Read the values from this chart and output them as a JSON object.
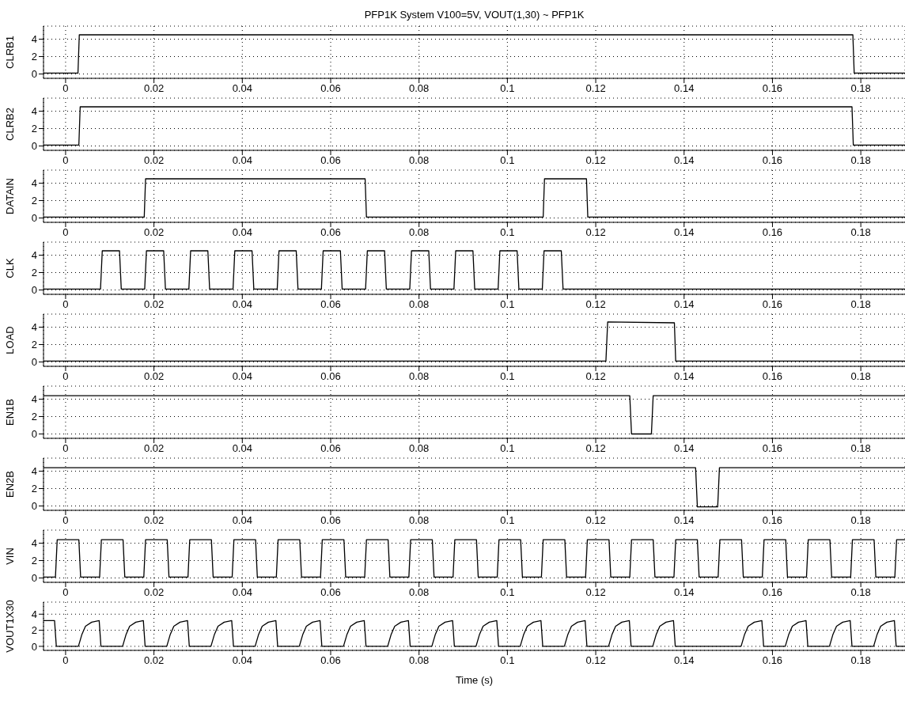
{
  "chart_data": [
    {
      "type": "line",
      "title": "PFP1K System V100=5V, VOUT(1,30) ~ PFP1K",
      "ylabel": "CLRB1",
      "color": "#000000",
      "x": [
        -0.005,
        0.0028,
        0.0031,
        0.1782,
        0.1785,
        0.19
      ],
      "values": [
        0.1,
        0.1,
        4.5,
        4.5,
        0.1,
        0.1
      ],
      "xlim": [
        -0.005,
        0.19
      ],
      "ylim": [
        -0.5,
        5.5
      ],
      "xticks": [
        0,
        0.02,
        0.04,
        0.06,
        0.08,
        0.1,
        0.12,
        0.14,
        0.16,
        0.18
      ],
      "yticks": [
        0,
        2,
        4
      ],
      "grid": true
    },
    {
      "type": "line",
      "ylabel": "CLRB2",
      "color": "#000000",
      "x": [
        -0.005,
        0.003,
        0.0033,
        0.178,
        0.1783,
        0.19
      ],
      "values": [
        0.1,
        0.1,
        4.5,
        4.5,
        0.1,
        0.1
      ],
      "xlim": [
        -0.005,
        0.19
      ],
      "ylim": [
        -0.5,
        5.5
      ],
      "xticks": [
        0,
        0.02,
        0.04,
        0.06,
        0.08,
        0.1,
        0.12,
        0.14,
        0.16,
        0.18
      ],
      "yticks": [
        0,
        2,
        4
      ],
      "grid": true
    },
    {
      "type": "line",
      "ylabel": "DATAIN",
      "color": "#000000",
      "x": [
        -0.005,
        0.0178,
        0.0181,
        0.0678,
        0.0681,
        0.1081,
        0.1084,
        0.1179,
        0.1182,
        0.19
      ],
      "values": [
        0.1,
        0.1,
        4.5,
        4.5,
        0.1,
        0.1,
        4.5,
        4.5,
        0.1,
        0.1
      ],
      "xlim": [
        -0.005,
        0.19
      ],
      "ylim": [
        -0.5,
        5.5
      ],
      "xticks": [
        0,
        0.02,
        0.04,
        0.06,
        0.08,
        0.1,
        0.12,
        0.14,
        0.16,
        0.18
      ],
      "yticks": [
        0,
        2,
        4
      ],
      "grid": true
    },
    {
      "type": "line",
      "ylabel": "CLK",
      "color": "#000000",
      "x": [
        -0.005,
        0.0079,
        0.0083,
        0.0122,
        0.0126,
        0.0179,
        0.0183,
        0.0222,
        0.0226,
        0.0279,
        0.0283,
        0.0322,
        0.0326,
        0.0379,
        0.0383,
        0.0422,
        0.0426,
        0.0479,
        0.0483,
        0.0522,
        0.0526,
        0.0579,
        0.0583,
        0.0622,
        0.0626,
        0.0679,
        0.0683,
        0.0722,
        0.0726,
        0.0779,
        0.0783,
        0.0822,
        0.0826,
        0.0879,
        0.0883,
        0.0922,
        0.0926,
        0.0979,
        0.0983,
        0.1022,
        0.1026,
        0.1079,
        0.1083,
        0.1122,
        0.1126,
        0.19
      ],
      "values": [
        0.1,
        0.1,
        4.5,
        4.5,
        0.1,
        0.1,
        4.5,
        4.5,
        0.1,
        0.1,
        4.5,
        4.5,
        0.1,
        0.1,
        4.5,
        4.5,
        0.1,
        0.1,
        4.5,
        4.5,
        0.1,
        0.1,
        4.5,
        4.5,
        0.1,
        0.1,
        4.5,
        4.5,
        0.1,
        0.1,
        4.5,
        4.5,
        0.1,
        0.1,
        4.5,
        4.5,
        0.1,
        0.1,
        4.5,
        4.5,
        0.1,
        0.1,
        4.5,
        4.5,
        0.1,
        0.1
      ],
      "xlim": [
        -0.005,
        0.19
      ],
      "ylim": [
        -0.5,
        5.5
      ],
      "xticks": [
        0,
        0.02,
        0.04,
        0.06,
        0.08,
        0.1,
        0.12,
        0.14,
        0.16,
        0.18
      ],
      "yticks": [
        0,
        2,
        4
      ],
      "grid": true
    },
    {
      "type": "line",
      "ylabel": "LOAD",
      "color": "#000000",
      "x": [
        -0.005,
        0.1223,
        0.1227,
        0.1378,
        0.1381,
        0.19
      ],
      "values": [
        0.1,
        0.1,
        4.6,
        4.5,
        0.1,
        0.1
      ],
      "xlim": [
        -0.005,
        0.19
      ],
      "ylim": [
        -0.5,
        5.5
      ],
      "xticks": [
        0,
        0.02,
        0.04,
        0.06,
        0.08,
        0.1,
        0.12,
        0.14,
        0.16,
        0.18
      ],
      "yticks": [
        0,
        2,
        4
      ],
      "grid": true
    },
    {
      "type": "line",
      "ylabel": "EN1B",
      "color": "#000000",
      "x": [
        -0.005,
        0.1277,
        0.1281,
        0.1326,
        0.133,
        0.19
      ],
      "values": [
        4.4,
        4.4,
        0,
        0,
        4.4,
        4.4
      ],
      "xlim": [
        -0.005,
        0.19
      ],
      "ylim": [
        -0.5,
        5.5
      ],
      "xticks": [
        0,
        0.02,
        0.04,
        0.06,
        0.08,
        0.1,
        0.12,
        0.14,
        0.16,
        0.18
      ],
      "yticks": [
        0,
        2,
        4
      ],
      "grid": true
    },
    {
      "type": "line",
      "ylabel": "EN2B",
      "color": "#000000",
      "x": [
        -0.005,
        0.1426,
        0.143,
        0.1476,
        0.148,
        0.19
      ],
      "values": [
        4.4,
        4.4,
        -0.1,
        -0.1,
        4.4,
        4.4
      ],
      "xlim": [
        -0.005,
        0.19
      ],
      "ylim": [
        -0.5,
        5.5
      ],
      "xticks": [
        0,
        0.02,
        0.04,
        0.06,
        0.08,
        0.1,
        0.12,
        0.14,
        0.16,
        0.18
      ],
      "yticks": [
        0,
        2,
        4
      ],
      "grid": true
    },
    {
      "type": "line",
      "ylabel": "VIN",
      "color": "#000000",
      "x": [
        -0.005,
        -0.0023,
        -0.0019,
        0.003,
        0.0034,
        0.0077,
        0.0081,
        0.013,
        0.0134,
        0.0177,
        0.0181,
        0.023,
        0.0234,
        0.0277,
        0.0281,
        0.033,
        0.0334,
        0.0377,
        0.0381,
        0.043,
        0.0434,
        0.0477,
        0.0481,
        0.053,
        0.0534,
        0.0577,
        0.0581,
        0.063,
        0.0634,
        0.0677,
        0.0681,
        0.073,
        0.0734,
        0.0777,
        0.0781,
        0.083,
        0.0834,
        0.0877,
        0.0881,
        0.093,
        0.0934,
        0.0977,
        0.0981,
        0.103,
        0.1034,
        0.1077,
        0.1081,
        0.113,
        0.1134,
        0.1177,
        0.1181,
        0.123,
        0.1234,
        0.1277,
        0.1281,
        0.133,
        0.1334,
        0.1377,
        0.1381,
        0.143,
        0.1434,
        0.1477,
        0.1481,
        0.153,
        0.1534,
        0.1577,
        0.1581,
        0.163,
        0.1634,
        0.1677,
        0.1681,
        0.173,
        0.1734,
        0.1777,
        0.1781,
        0.183,
        0.1834,
        0.1877,
        0.1881,
        0.19
      ],
      "values": [
        0.1,
        0.1,
        4.4,
        4.4,
        0.1,
        0.1,
        4.4,
        4.4,
        0.1,
        0.1,
        4.4,
        4.4,
        0.1,
        0.1,
        4.4,
        4.4,
        0.1,
        0.1,
        4.4,
        4.4,
        0.1,
        0.1,
        4.4,
        4.4,
        0.1,
        0.1,
        4.4,
        4.4,
        0.1,
        0.1,
        4.4,
        4.4,
        0.1,
        0.1,
        4.4,
        4.4,
        0.1,
        0.1,
        4.4,
        4.4,
        0.1,
        0.1,
        4.4,
        4.4,
        0.1,
        0.1,
        4.4,
        4.4,
        0.1,
        0.1,
        4.4,
        4.4,
        0.1,
        0.1,
        4.4,
        4.4,
        0.1,
        0.1,
        4.4,
        4.4,
        0.1,
        0.1,
        4.4,
        4.4,
        0.1,
        0.1,
        4.4,
        4.4,
        0.1,
        0.1,
        4.4,
        4.4,
        0.1,
        0.1,
        4.4,
        4.4,
        0.1,
        0.1,
        4.4,
        4.4
      ],
      "xlim": [
        -0.005,
        0.19
      ],
      "ylim": [
        -0.5,
        5.5
      ],
      "xticks": [
        0,
        0.02,
        0.04,
        0.06,
        0.08,
        0.1,
        0.12,
        0.14,
        0.16,
        0.18
      ],
      "yticks": [
        0,
        2,
        4
      ],
      "grid": true
    },
    {
      "type": "line",
      "ylabel": "VOUT1X30",
      "xlabel": "Time (s)",
      "color": "#000000",
      "x": [
        -0.005,
        -0.0025,
        -0.0021,
        0.0029,
        0.0037,
        0.0045,
        0.0059,
        0.0076,
        0.008,
        0.0129,
        0.0137,
        0.0145,
        0.0159,
        0.0176,
        0.018,
        0.0229,
        0.0237,
        0.0245,
        0.0259,
        0.0276,
        0.028,
        0.0329,
        0.0337,
        0.0345,
        0.0359,
        0.0376,
        0.038,
        0.0429,
        0.0437,
        0.0445,
        0.0459,
        0.0476,
        0.048,
        0.0529,
        0.0537,
        0.0545,
        0.0559,
        0.0576,
        0.058,
        0.0629,
        0.0637,
        0.0645,
        0.0659,
        0.0676,
        0.068,
        0.0729,
        0.0737,
        0.0745,
        0.0759,
        0.0776,
        0.078,
        0.0829,
        0.0837,
        0.0845,
        0.0859,
        0.0876,
        0.088,
        0.0929,
        0.0937,
        0.0945,
        0.0959,
        0.0976,
        0.098,
        0.1029,
        0.1037,
        0.1045,
        0.1059,
        0.1076,
        0.108,
        0.1129,
        0.1137,
        0.1145,
        0.1159,
        0.1176,
        0.118,
        0.1229,
        0.1237,
        0.1245,
        0.1259,
        0.1276,
        0.128,
        0.1329,
        0.1337,
        0.1345,
        0.1359,
        0.1376,
        0.138,
        0.1529,
        0.1537,
        0.1545,
        0.1559,
        0.1576,
        0.158,
        0.1629,
        0.1637,
        0.1645,
        0.1659,
        0.1676,
        0.168,
        0.1729,
        0.1737,
        0.1745,
        0.1759,
        0.1776,
        0.178,
        0.1829,
        0.1837,
        0.1845,
        0.1859,
        0.1876,
        0.188,
        0.19
      ],
      "values": [
        3.2,
        3.2,
        0,
        0,
        1.5,
        2.5,
        3.0,
        3.2,
        0,
        0,
        1.5,
        2.5,
        3.0,
        3.2,
        0,
        0,
        1.5,
        2.5,
        3.0,
        3.2,
        0,
        0,
        1.5,
        2.5,
        3.0,
        3.2,
        0,
        0,
        1.5,
        2.5,
        3.0,
        3.2,
        0,
        0,
        1.5,
        2.5,
        3.0,
        3.2,
        0,
        0,
        1.5,
        2.5,
        3.0,
        3.2,
        0,
        0,
        1.5,
        2.5,
        3.0,
        3.2,
        0,
        0,
        1.5,
        2.5,
        3.0,
        3.2,
        0,
        0,
        1.5,
        2.5,
        3.0,
        3.2,
        0,
        0,
        1.5,
        2.5,
        3.0,
        3.2,
        0,
        0,
        1.5,
        2.5,
        3.0,
        3.2,
        0,
        0,
        1.5,
        2.5,
        3.0,
        3.2,
        0,
        0,
        1.5,
        2.5,
        3.0,
        3.2,
        0,
        0,
        1.5,
        2.5,
        3.0,
        3.2,
        0,
        0,
        1.5,
        2.5,
        3.0,
        3.2,
        0,
        0,
        1.5,
        2.5,
        3.0,
        3.2,
        0,
        0,
        1.5,
        2.5,
        3.0,
        3.2,
        0,
        0
      ],
      "xlim": [
        -0.005,
        0.19
      ],
      "ylim": [
        -0.5,
        5.5
      ],
      "xticks": [
        0,
        0.02,
        0.04,
        0.06,
        0.08,
        0.1,
        0.12,
        0.14,
        0.16,
        0.18
      ],
      "yticks": [
        0,
        2,
        4
      ],
      "grid": true
    }
  ]
}
